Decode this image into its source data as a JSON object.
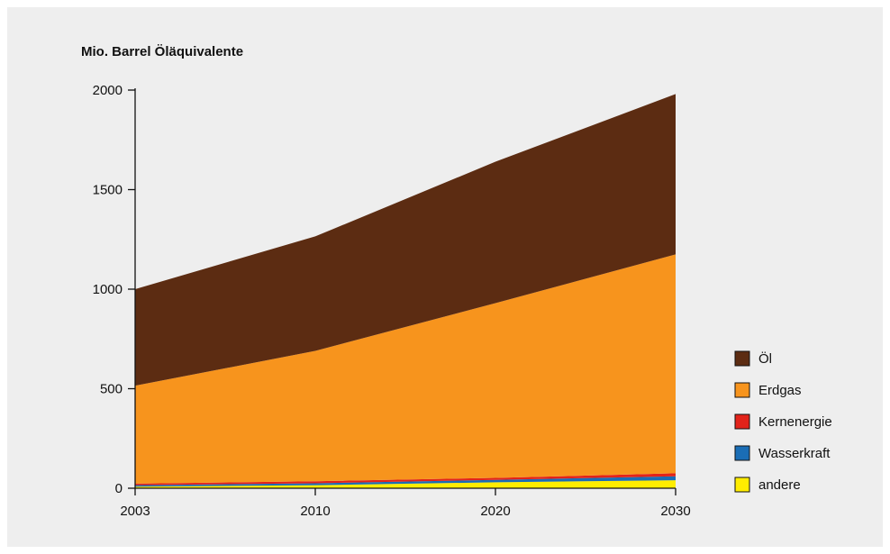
{
  "chart_data": {
    "type": "area",
    "stacked": true,
    "title": "Mio. Barrel Öläquivalente",
    "xlabel": "",
    "ylabel": "",
    "x": [
      "2003",
      "2010",
      "2020",
      "2030"
    ],
    "ylim": [
      0,
      2000
    ],
    "yticks": [
      0,
      500,
      1000,
      1500,
      2000
    ],
    "grid": false,
    "legend_position": "right",
    "series": [
      {
        "name": "andere",
        "color": "#ffed00",
        "values": [
          8,
          15,
          30,
          40
        ]
      },
      {
        "name": "Wasserkraft",
        "color": "#1a6db5",
        "values": [
          7,
          10,
          12,
          20
        ]
      },
      {
        "name": "Kernenergie",
        "color": "#e2231a",
        "values": [
          8,
          10,
          10,
          15
        ]
      },
      {
        "name": "Erdgas",
        "color": "#f7941d",
        "values": [
          492,
          655,
          878,
          1100
        ]
      },
      {
        "name": "Öl",
        "color": "#5c2c12",
        "values": [
          485,
          575,
          710,
          805
        ]
      }
    ],
    "legend_order": [
      "Öl",
      "Erdgas",
      "Kernenergie",
      "Wasserkraft",
      "andere"
    ]
  }
}
